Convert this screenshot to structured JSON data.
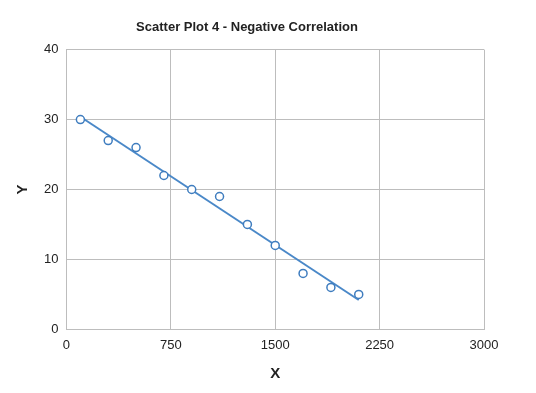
{
  "chart_data": {
    "type": "scatter",
    "title": "Scatter Plot 4 - Negative Correlation",
    "x_label": "X",
    "y_label": "Y",
    "series": [
      {
        "type": "scatter",
        "x": [
          100,
          300,
          500,
          700,
          900,
          1100,
          1300,
          1500,
          1700,
          1900,
          2100
        ],
        "values": [
          30,
          27,
          26,
          22,
          20,
          19,
          15,
          12,
          8,
          6,
          5
        ],
        "color": "#3f7dbf",
        "marker": "circle"
      },
      {
        "type": "line",
        "x": [
          100,
          2100
        ],
        "values": [
          30.4,
          4.2
        ],
        "color": "#4a88c8",
        "line_style": "solid"
      }
    ],
    "xlim": [
      0,
      3000
    ],
    "xticks": [
      0,
      750,
      1500,
      2250,
      3000
    ],
    "ylim": [
      0,
      40
    ],
    "yticks": [
      0,
      10,
      20,
      30,
      40
    ],
    "grid": true
  }
}
